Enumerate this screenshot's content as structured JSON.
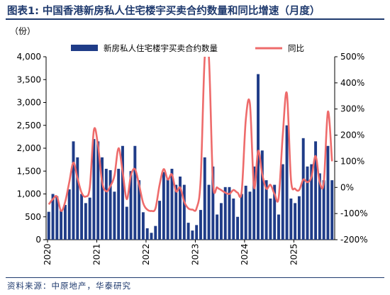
{
  "title": "图表1:  中国香港新房私人住宅楼宇买卖合约数量和同比增速（月度）",
  "source": "资料来源：中原地产，华泰研究",
  "colors": {
    "bar": "#1f3c88",
    "line": "#ee6b6b",
    "title": "#1f3a6e"
  },
  "chart_data": {
    "type": "bar",
    "ylabel": "（份）",
    "yticks_left": [
      "0",
      "500",
      "1,000",
      "1,500",
      "2,000",
      "2,500",
      "3,000",
      "3,500",
      "4,000"
    ],
    "ylim_left": [
      0,
      4000
    ],
    "yticks_right": [
      "-200%",
      "-100%",
      "0%",
      "100%",
      "200%",
      "300%",
      "400%",
      "500%"
    ],
    "ylim_right": [
      -200,
      500
    ],
    "xticks": [
      "2020",
      "2021",
      "2022",
      "2023",
      "2024",
      "2025"
    ],
    "legend": "top",
    "grid": false,
    "series": [
      {
        "name": "新房私人住宅楼宇买卖合约数量",
        "type": "bar",
        "axis": "left",
        "values": [
          610,
          1000,
          950,
          650,
          760,
          1100,
          2150,
          1800,
          1000,
          800,
          920,
          2200,
          2150,
          1800,
          1550,
          1520,
          1050,
          1550,
          2050,
          720,
          1500,
          2050,
          1300,
          600,
          250,
          150,
          300,
          850,
          1480,
          1350,
          1550,
          1200,
          1380,
          1200,
          370,
          200,
          320,
          650,
          1800,
          1200,
          1600,
          550,
          800,
          1150,
          1150,
          900,
          500,
          1000,
          1180,
          1050,
          1600,
          3620,
          1950,
          1300,
          900,
          1200,
          550,
          1650,
          2500,
          900,
          800,
          950,
          2220,
          1600,
          1650,
          2150,
          1450,
          1300,
          2050,
          1300
        ]
      },
      {
        "name": "同比",
        "type": "line",
        "axis": "right",
        "values": [
          -65,
          -45,
          -35,
          -90,
          -55,
          20,
          95,
          35,
          -20,
          -35,
          0,
          220,
          160,
          20,
          -15,
          5,
          45,
          150,
          60,
          -45,
          45,
          70,
          10,
          -60,
          -85,
          -90,
          -80,
          10,
          70,
          30,
          50,
          -15,
          0,
          -55,
          -80,
          -85,
          -80,
          30,
          550,
          500,
          20,
          0,
          -10,
          -20,
          -25,
          -10,
          -20,
          -15,
          260,
          320,
          0,
          140,
          50,
          -5,
          10,
          -25,
          -40,
          200,
          360,
          30,
          -5,
          -10,
          30,
          20,
          40,
          120,
          20,
          20,
          290,
          100
        ]
      }
    ]
  }
}
